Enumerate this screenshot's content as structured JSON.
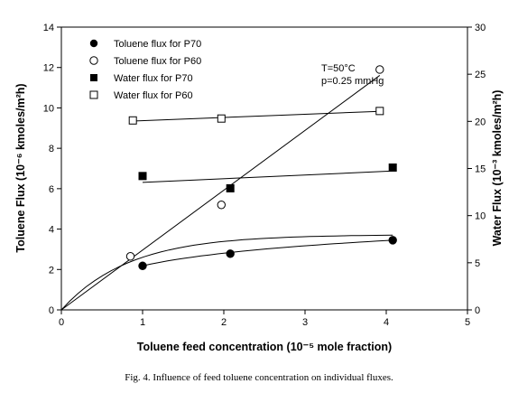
{
  "chart_data": {
    "type": "scatter",
    "title": "",
    "xlabel": "Toluene feed concentration (10⁻⁵ mole fraction)",
    "ylabel_left": "Toluene Flux (10⁻⁶ kmoles/m²h)",
    "ylabel_right": "Water Flux (10⁻³ kmoles/m²h)",
    "xlim": [
      0,
      5
    ],
    "ylim_left": [
      0,
      14
    ],
    "ylim_right": [
      0,
      30
    ],
    "x_ticks": [
      "0",
      "1",
      "2",
      "3",
      "4",
      "5"
    ],
    "y_left_ticks": [
      "0",
      "2",
      "4",
      "6",
      "8",
      "10",
      "12",
      "14"
    ],
    "y_right_ticks": [
      "0",
      "5",
      "10",
      "15",
      "20",
      "25",
      "30"
    ],
    "legend_position": "top-left",
    "annotations": [
      "T=50°C",
      "p=0.25 mmHg"
    ],
    "series": [
      {
        "name": "Toluene flux for P70",
        "marker": "filled-circle",
        "axis": "left",
        "x": [
          1.0,
          2.08,
          4.08
        ],
        "y": [
          2.18,
          2.78,
          3.45
        ],
        "fit": "curve"
      },
      {
        "name": "Toluene flux for P60",
        "marker": "open-circle",
        "axis": "left",
        "x": [
          0.85,
          1.97,
          3.92
        ],
        "y": [
          2.65,
          5.2,
          11.9
        ],
        "fit": "linear-through-origin"
      },
      {
        "name": "Water flux for P70",
        "marker": "filled-square",
        "axis": "right",
        "x": [
          1.0,
          2.08,
          4.08
        ],
        "y": [
          14.2,
          12.9,
          15.1
        ],
        "fit": "linear"
      },
      {
        "name": "Water flux for P60",
        "marker": "open-square",
        "axis": "right",
        "x": [
          0.88,
          1.97,
          3.92
        ],
        "y": [
          20.1,
          20.3,
          21.1
        ],
        "fit": "linear"
      }
    ]
  },
  "caption": "Fig. 4. Influence of feed toluene concentration on individual fluxes."
}
